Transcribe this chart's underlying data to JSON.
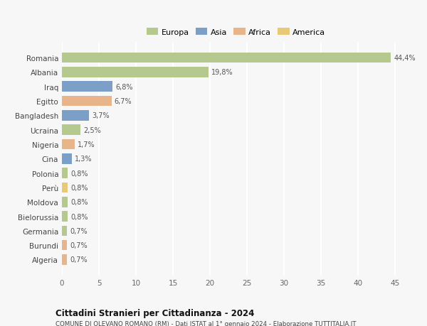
{
  "categories": [
    "Romania",
    "Albania",
    "Iraq",
    "Egitto",
    "Bangladesh",
    "Ucraina",
    "Nigeria",
    "Cina",
    "Polonia",
    "Perù",
    "Moldova",
    "Bielorussia",
    "Germania",
    "Burundi",
    "Algeria"
  ],
  "values": [
    44.4,
    19.8,
    6.8,
    6.7,
    3.7,
    2.5,
    1.7,
    1.3,
    0.8,
    0.8,
    0.8,
    0.8,
    0.7,
    0.7,
    0.7
  ],
  "labels": [
    "44,4%",
    "19,8%",
    "6,8%",
    "6,7%",
    "3,7%",
    "2,5%",
    "1,7%",
    "1,3%",
    "0,8%",
    "0,8%",
    "0,8%",
    "0,8%",
    "0,7%",
    "0,7%",
    "0,7%"
  ],
  "colors": [
    "#b5c98e",
    "#b5c98e",
    "#7b9fc7",
    "#e8b48a",
    "#7b9fc7",
    "#b5c98e",
    "#e8b48a",
    "#7b9fc7",
    "#b5c98e",
    "#e8c97a",
    "#b5c98e",
    "#b5c98e",
    "#b5c98e",
    "#e8b48a",
    "#e8b48a"
  ],
  "legend_labels": [
    "Europa",
    "Asia",
    "Africa",
    "America"
  ],
  "legend_colors": [
    "#b5c98e",
    "#7b9fc7",
    "#e8b48a",
    "#e8c97a"
  ],
  "title": "Cittadini Stranieri per Cittadinanza - 2024",
  "subtitle": "COMUNE DI OLEVANO ROMANO (RM) - Dati ISTAT al 1° gennaio 2024 - Elaborazione TUTTITALIA.IT",
  "xlim": [
    0,
    47
  ],
  "xticks": [
    0,
    5,
    10,
    15,
    20,
    25,
    30,
    35,
    40,
    45
  ],
  "background_color": "#f7f7f7",
  "grid_color": "#ffffff",
  "bar_height": 0.72
}
